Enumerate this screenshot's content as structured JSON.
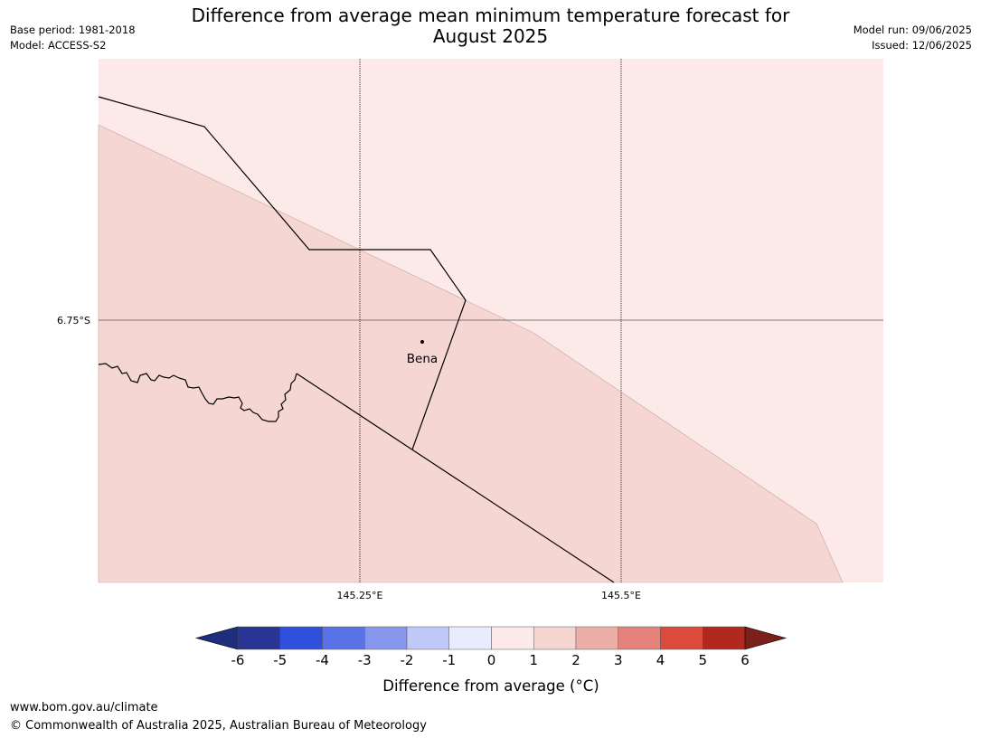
{
  "header": {
    "title_line1": "Difference from average mean minimum temperature forecast for",
    "title_line2": "August 2025",
    "base_period": "Base period: 1981-2018",
    "model": "Model: ACCESS-S2",
    "model_run": "Model run: 09/06/2025",
    "issued": "Issued: 12/06/2025"
  },
  "map": {
    "lat_label": "6.75°S",
    "lon_labels": [
      "145.25°E",
      "145.5°E"
    ],
    "place": "Bena",
    "colors": {
      "zone_0_1": "#fbeae8",
      "zone_1_2": "#f5d6d3",
      "boundary": "#000000",
      "gridline": "#000000"
    }
  },
  "colorbar": {
    "ticks": [
      "-6",
      "-5",
      "-4",
      "-3",
      "-2",
      "-1",
      "0",
      "1",
      "2",
      "3",
      "4",
      "5",
      "6"
    ],
    "colors": [
      "#283593",
      "#2f4fdc",
      "#5a72e6",
      "#8797ee",
      "#bfc8f6",
      "#e9ecfc",
      "#fbeae8",
      "#f5d6d3",
      "#eeaea8",
      "#e6827c",
      "#dc4a3e",
      "#b0281f"
    ],
    "under_color": "#1f2e7c",
    "over_color": "#7a1f1a",
    "label": "Difference from average (°C)"
  },
  "footer": {
    "url": "www.bom.gov.au/climate",
    "copyright": "© Commonwealth of Australia 2025, Australian Bureau of Meteorology"
  }
}
